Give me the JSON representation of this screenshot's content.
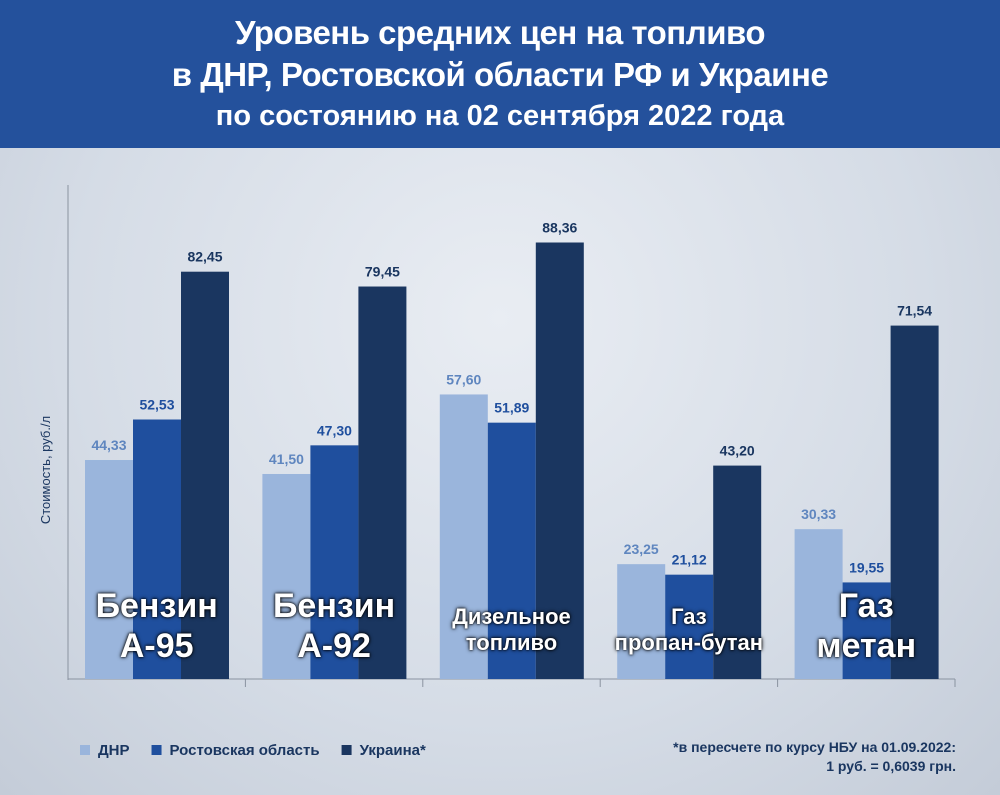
{
  "chart_data": {
    "type": "bar",
    "title": "Уровень средних цен на топливо\nв ДНР, Ростовской области РФ и Украине",
    "subtitle": "по состоянию на 02 сентября 2022 года",
    "y_label": "Стоимость,  руб./л",
    "categories": [
      "Бензин\nА-95",
      "Бензин\nА-92",
      "Дизельное\nтопливо",
      "Газ\nпропан-бутан",
      "Газ метан"
    ],
    "series": [
      {
        "name": "ДНР",
        "color": "#9ab5dc",
        "values": [
          44.33,
          41.5,
          57.6,
          23.25,
          30.33
        ],
        "value_labels": [
          "44,33",
          "41,50",
          "57,60",
          "23,25",
          "30,33"
        ]
      },
      {
        "name": "Ростовская область",
        "color": "#1f4f9e",
        "values": [
          52.53,
          47.3,
          51.89,
          21.12,
          19.55
        ],
        "value_labels": [
          "52,53",
          "47,30",
          "51,89",
          "21,12",
          "19,55"
        ]
      },
      {
        "name": "Украина*",
        "color": "#1a3660",
        "values": [
          82.45,
          79.45,
          88.36,
          43.2,
          71.54
        ],
        "value_labels": [
          "82,45",
          "79,45",
          "88,36",
          "43,20",
          "71,54"
        ]
      }
    ],
    "ylim": [
      0,
      100
    ],
    "footnote": "*в пересчете по курсу НБУ на 01.09.2022:\n1 руб. = 0,6039 грн."
  }
}
